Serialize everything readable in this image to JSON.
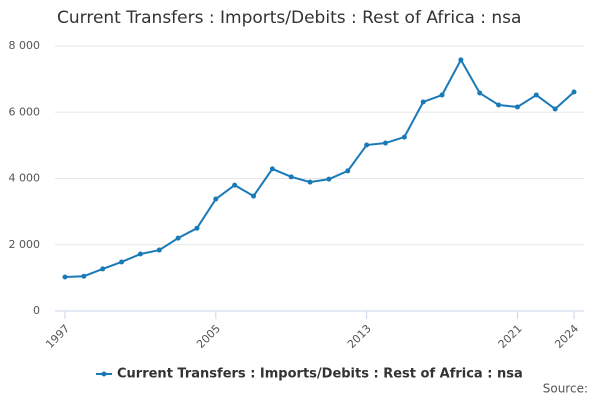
{
  "chart_data": {
    "type": "line",
    "title": "Current Transfers : Imports/Debits : Rest of Africa : nsa",
    "x": [
      1997,
      1998,
      1999,
      2000,
      2001,
      2002,
      2003,
      2004,
      2005,
      2006,
      2007,
      2008,
      2009,
      2010,
      2011,
      2012,
      2013,
      2014,
      2015,
      2016,
      2017,
      2018,
      2019,
      2020,
      2021,
      2022,
      2023,
      2024
    ],
    "series": [
      {
        "name": "Current Transfers : Imports/Debits : Rest of Africa : nsa",
        "color": "#1a7ab8",
        "values": [
          1026,
          1050,
          1270,
          1480,
          1720,
          1840,
          2200,
          2500,
          3380,
          3800,
          3470,
          4290,
          4050,
          3890,
          3980,
          4230,
          5010,
          5070,
          5250,
          6310,
          6520,
          7580,
          6580,
          6220,
          6160,
          6520,
          6100,
          6610
        ]
      }
    ],
    "xlim": [
      1997,
      2024
    ],
    "xticks": [
      1997,
      2005,
      2013,
      2021,
      2024
    ],
    "ylim": [
      0,
      8000
    ],
    "yticks": [
      0,
      {
        "value": 2000,
        "label": "2 000"
      },
      {
        "value": 4000,
        "label": "4 000"
      },
      {
        "value": 6000,
        "label": "6 000"
      },
      {
        "value": 8000,
        "label": "8 000"
      }
    ],
    "grid": true,
    "legend": "bottom",
    "source": "Source:"
  }
}
